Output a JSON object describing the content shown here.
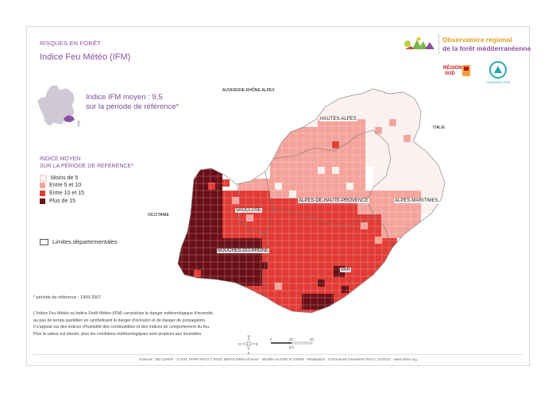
{
  "header": {
    "kicker": "RISQUES EN FORÊT",
    "title": "Indice Feu Météo (IFM)"
  },
  "branding": {
    "observatory_line1": "Observatoire régional",
    "observatory_line2": "de la forêt méditerranéenne",
    "region_logo_text": "RÉGION SUD",
    "communes_logo_text": "COMMUNES FORESTIÈRES"
  },
  "summary": {
    "line1": "Indice IFM moyen : 9,5",
    "line2": "sur la période de référence*"
  },
  "legend": {
    "title_line1": "INDICE MOYEN",
    "title_line2": "SUR LA PÉRIODE DE REFERENCE*",
    "classes": [
      {
        "label": "Moins de 5",
        "color": "#fdf0ee"
      },
      {
        "label": "Entre 5 et 10",
        "color": "#f4a29a"
      },
      {
        "label": "Entre 10 et 15",
        "color": "#e23a34"
      },
      {
        "label": "Plus de 15",
        "color": "#6b0f17"
      }
    ],
    "limits_label": "Limites départementales"
  },
  "map": {
    "neighbors": {
      "north": "AUVERGNE-RHÔNE-ALPES",
      "east": "ITALIE",
      "west": "OCCITANIE"
    },
    "departments": [
      "HAUTES-ALPES",
      "ALPES-DE-HAUTE-PROVENCE",
      "ALPES-MARITIMES",
      "VAUCLUSE",
      "BOUCHES-DU-RHÔNE",
      "VAR"
    ],
    "scale_labels": [
      "0",
      "20",
      "40"
    ],
    "scale_unit": "km",
    "compass": [
      "N",
      "O",
      "E",
      "S"
    ]
  },
  "notes": {
    "reference_period": "* période de référence : 1959-2007",
    "description_lines": [
      "L'Indice Feu Météo ou Indice Forêt Météo (IFM) caractérise le danger météorologique d'incendie",
      "au pas de temps quotidien en synthétisant le danger d'éclosion et de danger de propagation.",
      "Il s'appuie sur des indices d'humidité des combustibles et des indices de comportement du feu.",
      "Plus la valeur est élevée, plus les conditions météorologiques sont propices aux incendies."
    ],
    "sources": "Sources : BD Carto® - © IGN, PFRR PACA n°8410, DRIAS Météo-France - Modèle ALADIN et CNRM - Réalisation : Communes forestières PACA, 11/2021 - www.ofme.org"
  }
}
